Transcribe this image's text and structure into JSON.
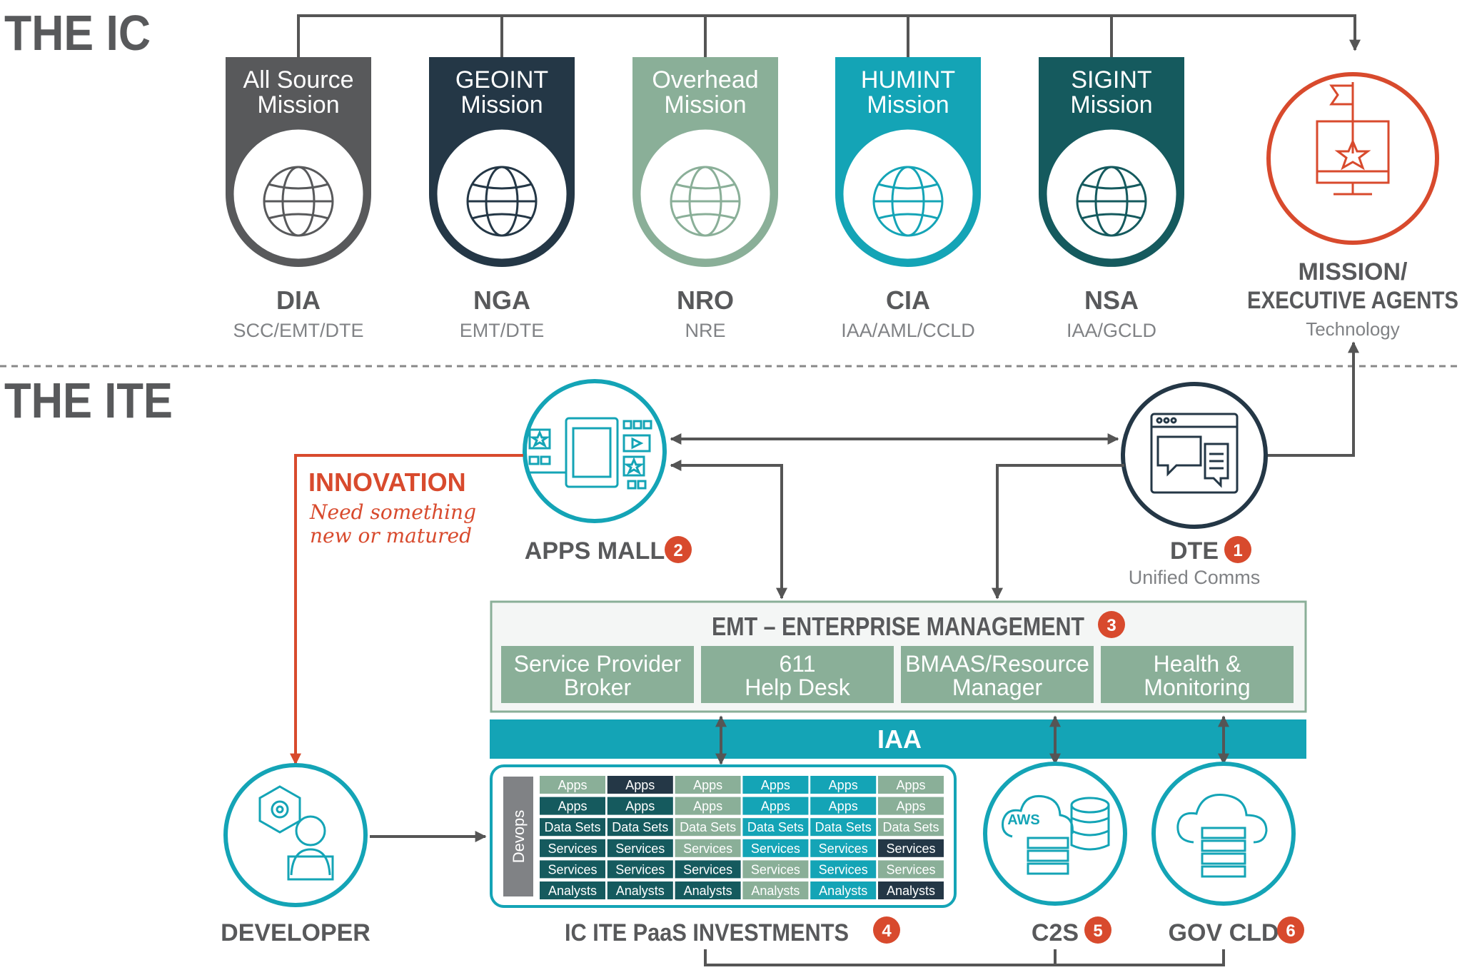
{
  "sections": {
    "ic_title": "THE IC",
    "ite_title": "THE ITE"
  },
  "missions": [
    {
      "line1": "All Source",
      "line2": "Mission",
      "agency": "DIA",
      "sub": "SCC/EMT/DTE"
    },
    {
      "line1": "GEOINT",
      "line2": "Mission",
      "agency": "NGA",
      "sub": "EMT/DTE"
    },
    {
      "line1": "Overhead",
      "line2": "Mission",
      "agency": "NRO",
      "sub": "NRE"
    },
    {
      "line1": "HUMINT",
      "line2": "Mission",
      "agency": "CIA",
      "sub": "IAA/AML/CCLD"
    },
    {
      "line1": "SIGINT",
      "line2": "Mission",
      "agency": "NSA",
      "sub": "IAA/GCLD"
    }
  ],
  "mission_exec": {
    "line1": "MISSION/",
    "line2": "EXECUTIVE AGENTS",
    "sub": "Technology"
  },
  "innovation": {
    "title": "INNOVATION",
    "line1": "Need something",
    "line2": "new or matured"
  },
  "apps_mall": {
    "label": "APPS MALL",
    "badge": "2"
  },
  "dte": {
    "label": "DTE",
    "badge": "1",
    "sub": "Unified Comms"
  },
  "emt": {
    "title": "EMT – ENTERPRISE MANAGEMENT",
    "badge": "3",
    "boxes": [
      {
        "line1": "Service Provider",
        "line2": "Broker"
      },
      {
        "line1": "611",
        "line2": "Help Desk"
      },
      {
        "line1": "BMAAS/Resource",
        "line2": "Manager"
      },
      {
        "line1": "Health &",
        "line2": "Monitoring"
      }
    ]
  },
  "iaa": {
    "label": "IAA"
  },
  "developer": {
    "label": "DEVELOPER"
  },
  "paas": {
    "devops": "Devops",
    "label": "IC ITE PaaS INVESTMENTS",
    "badge": "4",
    "rows": [
      "Apps",
      "Apps",
      "Data Sets",
      "Services",
      "Services",
      "Analysts"
    ]
  },
  "c2s": {
    "label": "C2S",
    "badge": "5",
    "aws": "AWS"
  },
  "gov_cld": {
    "label": "GOV CLD",
    "badge": "6"
  },
  "colors": {
    "gray": "#58595b",
    "navy": "#243746",
    "sage": "#8aaf98",
    "teal": "#14a4b6",
    "darkteal": "#155a5e",
    "red": "#d84a2d",
    "line": "#555555"
  }
}
